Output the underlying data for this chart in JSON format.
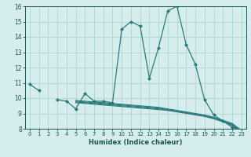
{
  "xlabel": "Humidex (Indice chaleur)",
  "x_values": [
    0,
    1,
    2,
    3,
    4,
    5,
    6,
    7,
    8,
    9,
    10,
    11,
    12,
    13,
    14,
    15,
    16,
    17,
    18,
    19,
    20,
    21,
    22,
    23
  ],
  "main_line": [
    10.9,
    10.5,
    null,
    9.9,
    9.8,
    9.3,
    10.3,
    9.8,
    9.8,
    9.7,
    14.5,
    15.0,
    14.7,
    11.3,
    13.3,
    15.7,
    16.0,
    13.5,
    12.2,
    9.9,
    8.9,
    8.5,
    8.1,
    7.7
  ],
  "trend_lines": [
    [
      9.7,
      9.65,
      9.6,
      9.55,
      9.5,
      9.45,
      9.4,
      9.35,
      9.3,
      9.25,
      9.2,
      9.15,
      9.05,
      8.95,
      8.85,
      8.7,
      8.5,
      8.2,
      7.75
    ],
    [
      9.75,
      9.7,
      9.65,
      9.6,
      9.55,
      9.5,
      9.45,
      9.4,
      9.35,
      9.3,
      9.2,
      9.1,
      9.0,
      8.9,
      8.8,
      8.65,
      8.45,
      8.25,
      7.8
    ],
    [
      9.8,
      9.75,
      9.7,
      9.65,
      9.6,
      9.55,
      9.5,
      9.45,
      9.4,
      9.35,
      9.25,
      9.15,
      9.05,
      8.95,
      8.85,
      8.7,
      8.5,
      8.3,
      7.85
    ],
    [
      9.85,
      9.8,
      9.75,
      9.7,
      9.65,
      9.6,
      9.55,
      9.5,
      9.45,
      9.4,
      9.3,
      9.2,
      9.1,
      9.0,
      8.9,
      8.75,
      8.55,
      8.35,
      7.9
    ]
  ],
  "trend_start_x": 5,
  "line_color": "#2a7a7a",
  "bg_color": "#d5eeed",
  "grid_color": "#afd4d0",
  "ylim": [
    8,
    16
  ],
  "xlim": [
    -0.5,
    23.5
  ],
  "yticks": [
    8,
    9,
    10,
    11,
    12,
    13,
    14,
    15,
    16
  ],
  "xticks": [
    0,
    1,
    2,
    3,
    4,
    5,
    6,
    7,
    8,
    9,
    10,
    11,
    12,
    13,
    14,
    15,
    16,
    17,
    18,
    19,
    20,
    21,
    22,
    23
  ]
}
